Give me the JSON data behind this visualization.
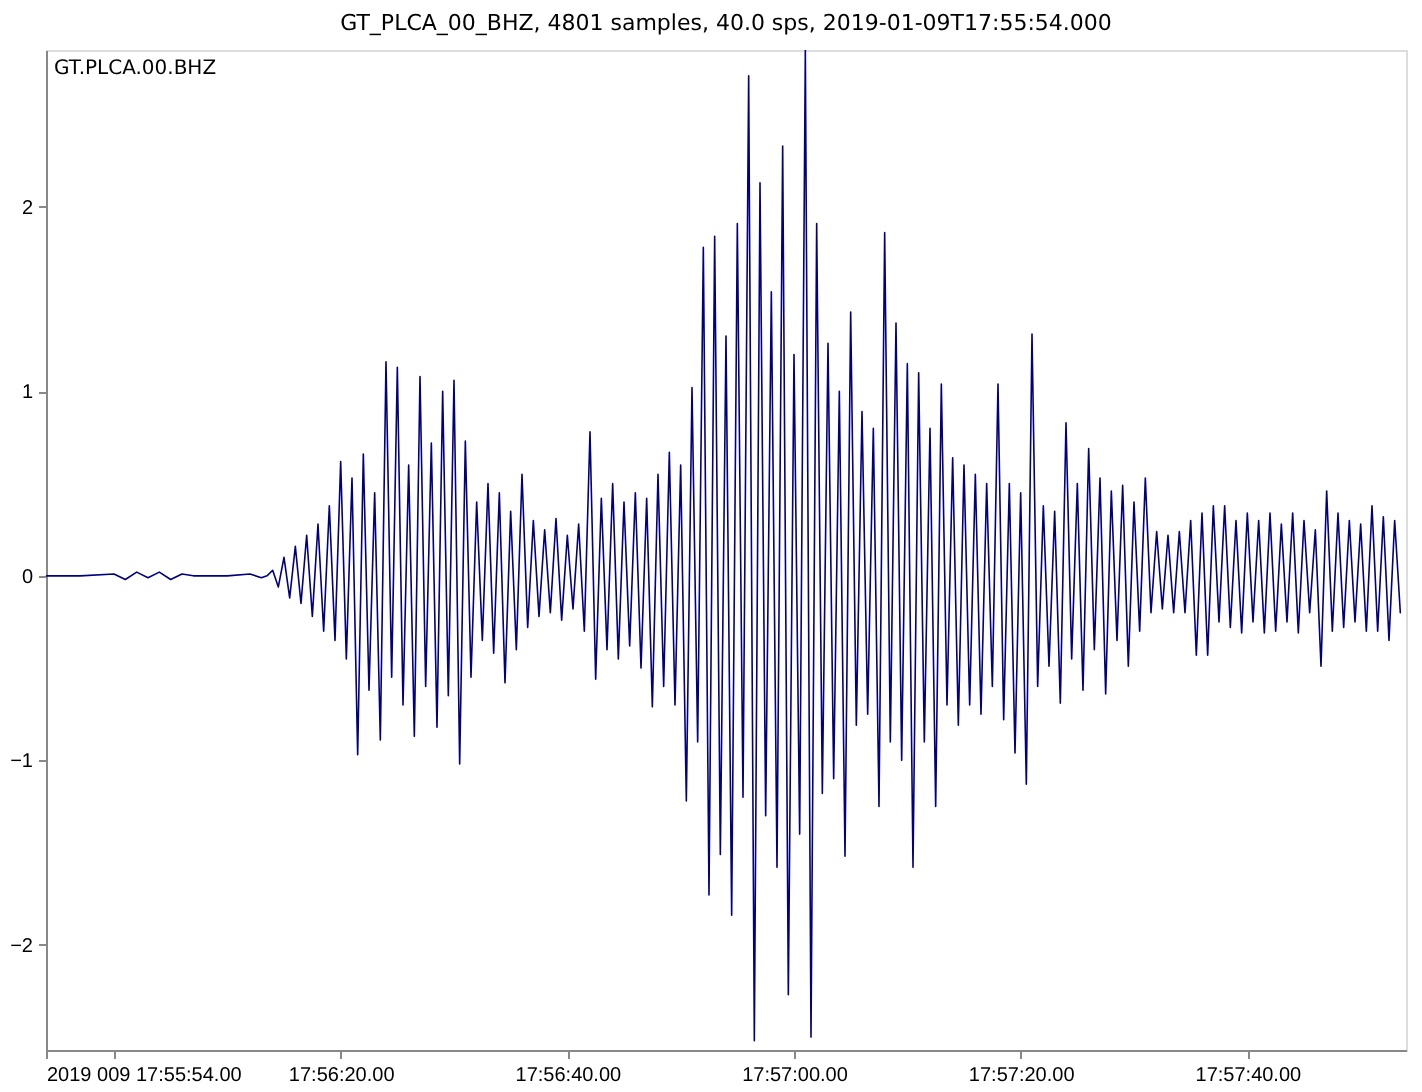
{
  "chart_data": {
    "type": "line",
    "title": "GT_PLCA_00_BHZ, 4801 samples, 40.0 sps, 2019-01-09T17:55:54.000",
    "annotations": [
      "GT.PLCA.00.BHZ"
    ],
    "x": [
      "2019-01-09T17:55:54",
      "2019-01-09T17:55:57",
      "2019-01-09T17:56:00",
      "2019-01-09T17:56:01",
      "2019-01-09T17:56:02",
      "2019-01-09T17:56:03",
      "2019-01-09T17:56:04",
      "2019-01-09T17:56:05",
      "2019-01-09T17:56:06",
      "2019-01-09T17:56:07",
      "2019-01-09T17:56:10",
      "2019-01-09T17:56:12",
      "2019-01-09T17:56:13",
      "2019-01-09T17:56:13.5",
      "2019-01-09T17:56:14",
      "2019-01-09T17:56:14.5",
      "2019-01-09T17:56:15",
      "2019-01-09T17:56:15.5",
      "2019-01-09T17:56:16",
      "2019-01-09T17:56:16.5",
      "2019-01-09T17:56:17",
      "2019-01-09T17:56:17.5",
      "2019-01-09T17:56:18",
      "2019-01-09T17:56:18.5",
      "2019-01-09T17:56:19",
      "2019-01-09T17:56:19.5",
      "2019-01-09T17:56:20",
      "2019-01-09T17:56:20.5",
      "2019-01-09T17:56:21",
      "2019-01-09T17:56:21.5",
      "2019-01-09T17:56:22",
      "2019-01-09T17:56:22.5",
      "2019-01-09T17:56:23",
      "2019-01-09T17:56:23.5",
      "2019-01-09T17:56:24",
      "2019-01-09T17:56:24.5",
      "2019-01-09T17:56:25",
      "2019-01-09T17:56:25.5",
      "2019-01-09T17:56:26",
      "2019-01-09T17:56:26.5",
      "2019-01-09T17:56:27",
      "2019-01-09T17:56:27.5",
      "2019-01-09T17:56:28",
      "2019-01-09T17:56:28.5",
      "2019-01-09T17:56:29",
      "2019-01-09T17:56:29.5",
      "2019-01-09T17:56:30",
      "2019-01-09T17:56:30.5",
      "2019-01-09T17:56:31",
      "2019-01-09T17:56:31.5",
      "2019-01-09T17:56:32",
      "2019-01-09T17:56:32.5",
      "2019-01-09T17:56:33",
      "2019-01-09T17:56:33.5",
      "2019-01-09T17:56:34",
      "2019-01-09T17:56:34.5",
      "2019-01-09T17:56:35",
      "2019-01-09T17:56:35.5",
      "2019-01-09T17:56:36",
      "2019-01-09T17:56:36.5",
      "2019-01-09T17:56:37",
      "2019-01-09T17:56:37.5",
      "2019-01-09T17:56:38",
      "2019-01-09T17:56:38.5",
      "2019-01-09T17:56:39",
      "2019-01-09T17:56:39.5",
      "2019-01-09T17:56:40",
      "2019-01-09T17:56:40.5",
      "2019-01-09T17:56:41",
      "2019-01-09T17:56:41.5",
      "2019-01-09T17:56:42",
      "2019-01-09T17:56:42.5",
      "2019-01-09T17:56:43",
      "2019-01-09T17:56:43.5",
      "2019-01-09T17:56:44",
      "2019-01-09T17:56:44.5",
      "2019-01-09T17:56:45",
      "2019-01-09T17:56:45.5",
      "2019-01-09T17:56:46",
      "2019-01-09T17:56:46.5",
      "2019-01-09T17:56:47",
      "2019-01-09T17:56:47.5",
      "2019-01-09T17:56:48",
      "2019-01-09T17:56:48.5",
      "2019-01-09T17:56:49",
      "2019-01-09T17:56:49.5",
      "2019-01-09T17:56:50",
      "2019-01-09T17:56:50.5",
      "2019-01-09T17:56:51",
      "2019-01-09T17:56:51.5",
      "2019-01-09T17:56:52",
      "2019-01-09T17:56:52.5",
      "2019-01-09T17:56:53",
      "2019-01-09T17:56:53.5",
      "2019-01-09T17:56:54",
      "2019-01-09T17:56:54.5",
      "2019-01-09T17:56:55",
      "2019-01-09T17:56:55.5",
      "2019-01-09T17:56:56",
      "2019-01-09T17:56:56.5",
      "2019-01-09T17:56:57",
      "2019-01-09T17:56:57.5",
      "2019-01-09T17:56:58",
      "2019-01-09T17:56:58.5",
      "2019-01-09T17:56:59",
      "2019-01-09T17:56:59.5",
      "2019-01-09T17:57:00",
      "2019-01-09T17:57:00.5",
      "2019-01-09T17:57:01",
      "2019-01-09T17:57:01.5",
      "2019-01-09T17:57:02",
      "2019-01-09T17:57:02.5",
      "2019-01-09T17:57:03",
      "2019-01-09T17:57:03.5",
      "2019-01-09T17:57:04",
      "2019-01-09T17:57:04.5",
      "2019-01-09T17:57:05",
      "2019-01-09T17:57:05.5",
      "2019-01-09T17:57:06",
      "2019-01-09T17:57:06.5",
      "2019-01-09T17:57:07",
      "2019-01-09T17:57:07.5",
      "2019-01-09T17:57:08",
      "2019-01-09T17:57:08.5",
      "2019-01-09T17:57:09",
      "2019-01-09T17:57:09.5",
      "2019-01-09T17:57:10",
      "2019-01-09T17:57:10.5",
      "2019-01-09T17:57:11",
      "2019-01-09T17:57:11.5",
      "2019-01-09T17:57:12",
      "2019-01-09T17:57:12.5",
      "2019-01-09T17:57:13",
      "2019-01-09T17:57:13.5",
      "2019-01-09T17:57:14",
      "2019-01-09T17:57:14.5",
      "2019-01-09T17:57:15",
      "2019-01-09T17:57:15.5",
      "2019-01-09T17:57:16",
      "2019-01-09T17:57:16.5",
      "2019-01-09T17:57:17",
      "2019-01-09T17:57:17.5",
      "2019-01-09T17:57:18",
      "2019-01-09T17:57:18.5",
      "2019-01-09T17:57:19",
      "2019-01-09T17:57:19.5",
      "2019-01-09T17:57:20",
      "2019-01-09T17:57:20.5",
      "2019-01-09T17:57:21",
      "2019-01-09T17:57:21.5",
      "2019-01-09T17:57:22",
      "2019-01-09T17:57:22.5",
      "2019-01-09T17:57:23",
      "2019-01-09T17:57:23.5",
      "2019-01-09T17:57:24",
      "2019-01-09T17:57:24.5",
      "2019-01-09T17:57:25",
      "2019-01-09T17:57:25.5",
      "2019-01-09T17:57:26",
      "2019-01-09T17:57:26.5",
      "2019-01-09T17:57:27",
      "2019-01-09T17:57:27.5",
      "2019-01-09T17:57:28",
      "2019-01-09T17:57:28.5",
      "2019-01-09T17:57:29",
      "2019-01-09T17:57:29.5",
      "2019-01-09T17:57:30",
      "2019-01-09T17:57:30.5",
      "2019-01-09T17:57:31",
      "2019-01-09T17:57:31.5",
      "2019-01-09T17:57:32",
      "2019-01-09T17:57:32.5",
      "2019-01-09T17:57:33",
      "2019-01-09T17:57:33.5",
      "2019-01-09T17:57:34",
      "2019-01-09T17:57:34.5",
      "2019-01-09T17:57:35",
      "2019-01-09T17:57:35.5",
      "2019-01-09T17:57:36",
      "2019-01-09T17:57:36.5",
      "2019-01-09T17:57:37",
      "2019-01-09T17:57:37.5",
      "2019-01-09T17:57:38",
      "2019-01-09T17:57:38.5",
      "2019-01-09T17:57:39",
      "2019-01-09T17:57:39.5",
      "2019-01-09T17:57:40",
      "2019-01-09T17:57:40.5",
      "2019-01-09T17:57:41",
      "2019-01-09T17:57:41.5",
      "2019-01-09T17:57:42",
      "2019-01-09T17:57:42.5",
      "2019-01-09T17:57:43",
      "2019-01-09T17:57:43.5",
      "2019-01-09T17:57:44",
      "2019-01-09T17:57:44.5",
      "2019-01-09T17:57:45",
      "2019-01-09T17:57:45.5",
      "2019-01-09T17:57:46",
      "2019-01-09T17:57:46.5",
      "2019-01-09T17:57:47",
      "2019-01-09T17:57:47.5",
      "2019-01-09T17:57:48",
      "2019-01-09T17:57:48.5",
      "2019-01-09T17:57:49",
      "2019-01-09T17:57:49.5",
      "2019-01-09T17:57:50",
      "2019-01-09T17:57:50.5",
      "2019-01-09T17:57:51",
      "2019-01-09T17:57:51.5",
      "2019-01-09T17:57:52",
      "2019-01-09T17:57:52.5",
      "2019-01-09T17:57:53",
      "2019-01-09T17:57:53.5"
    ],
    "series": [
      {
        "color": "#000080",
        "values": [
          0,
          0,
          0.01,
          -0.02,
          0.02,
          -0.01,
          0.02,
          -0.02,
          0.01,
          0,
          0,
          0.01,
          -0.01,
          0,
          0.03,
          -0.06,
          0.1,
          -0.12,
          0.16,
          -0.15,
          0.22,
          -0.22,
          0.28,
          -0.3,
          0.38,
          -0.35,
          0.62,
          -0.45,
          0.53,
          -0.97,
          0.66,
          -0.62,
          0.45,
          -0.89,
          1.16,
          -0.55,
          1.13,
          -0.7,
          0.6,
          -0.87,
          1.08,
          -0.6,
          0.72,
          -0.82,
          1.0,
          -0.65,
          1.06,
          -1.02,
          0.73,
          -0.55,
          0.4,
          -0.35,
          0.5,
          -0.42,
          0.45,
          -0.58,
          0.35,
          -0.4,
          0.55,
          -0.28,
          0.3,
          -0.22,
          0.25,
          -0.2,
          0.31,
          -0.24,
          0.22,
          -0.18,
          0.28,
          -0.3,
          0.78,
          -0.56,
          0.42,
          -0.4,
          0.5,
          -0.45,
          0.4,
          -0.38,
          0.45,
          -0.5,
          0.42,
          -0.71,
          0.55,
          -0.6,
          0.67,
          -0.7,
          0.6,
          -1.22,
          1.02,
          -0.9,
          1.78,
          -1.73,
          1.84,
          -1.51,
          1.3,
          -1.84,
          1.91,
          -1.2,
          2.71,
          -2.52,
          2.13,
          -1.3,
          1.54,
          -1.58,
          2.33,
          -2.27,
          1.2,
          -1.4,
          2.85,
          -2.5,
          1.91,
          -1.18,
          1.26,
          -1.1,
          1.0,
          -1.52,
          1.43,
          -0.81,
          0.89,
          -0.75,
          0.8,
          -1.25,
          1.86,
          -0.9,
          1.37,
          -1.0,
          1.15,
          -1.58,
          1.1,
          -0.9,
          0.8,
          -1.25,
          1.04,
          -0.7,
          0.64,
          -0.81,
          0.6,
          -0.7,
          0.55,
          -0.75,
          0.5,
          -0.6,
          1.04,
          -0.78,
          0.5,
          -0.96,
          0.45,
          -1.13,
          1.31,
          -0.6,
          0.38,
          -0.49,
          0.35,
          -0.69,
          0.83,
          -0.45,
          0.5,
          -0.62,
          0.69,
          -0.4,
          0.53,
          -0.64,
          0.46,
          -0.35,
          0.49,
          -0.49,
          0.4,
          -0.3,
          0.53,
          -0.2,
          0.24,
          -0.18,
          0.22,
          -0.2,
          0.24,
          -0.2,
          0.3,
          -0.43,
          0.34,
          -0.43,
          0.38,
          -0.25,
          0.38,
          -0.28,
          0.3,
          -0.31,
          0.34,
          -0.25,
          0.3,
          -0.31,
          0.34,
          -0.3,
          0.28,
          -0.25,
          0.34,
          -0.31,
          0.3,
          -0.2,
          0.25,
          -0.49,
          0.46,
          -0.3,
          0.34,
          -0.28,
          0.3,
          -0.25,
          0.28,
          -0.3,
          0.38,
          -0.3,
          0.32,
          -0.35,
          0.3,
          -0.2
        ]
      }
    ],
    "xlim": [
      "2019-01-09T17:55:54",
      "2019-01-09T17:57:54"
    ],
    "xticks": [
      {
        "value": "2019-01-09T17:55:54",
        "label": "2019 009 17:55:54.00"
      },
      {
        "value": "2019-01-09T17:56:00",
        "label": null
      },
      {
        "value": "2019-01-09T17:56:20",
        "label": "17:56:20.00"
      },
      {
        "value": "2019-01-09T17:56:40",
        "label": "17:56:40.00"
      },
      {
        "value": "2019-01-09T17:57:00",
        "label": "17:57:00.00"
      },
      {
        "value": "2019-01-09T17:57:20",
        "label": "17:57:20.00"
      },
      {
        "value": "2019-01-09T17:57:40",
        "label": "17:57:40.00"
      }
    ],
    "ylim": [
      -2.57,
      2.85
    ],
    "yticks": [
      -2,
      -1,
      0,
      1,
      2
    ],
    "line_style": "solid"
  }
}
